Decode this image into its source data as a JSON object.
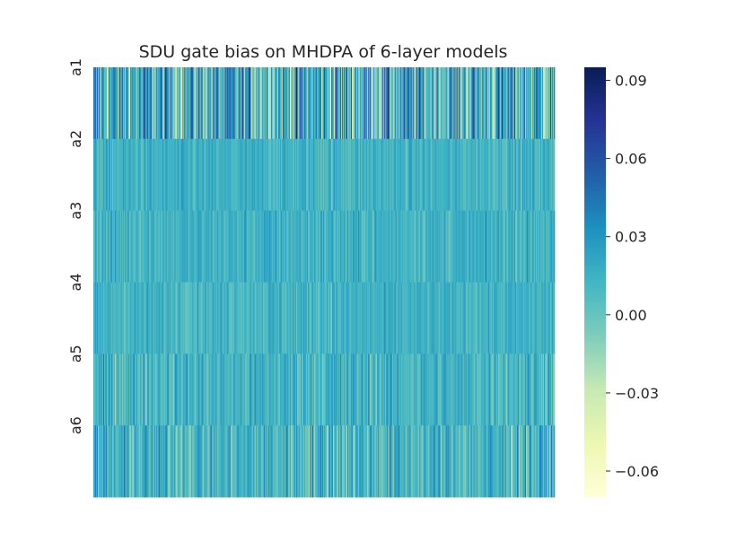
{
  "chart_data": {
    "type": "heatmap",
    "title": "SDU gate bias on MHDPA of 6-layer models",
    "xlabel": "",
    "ylabel": "",
    "row_labels": [
      "a1",
      "a2",
      "a3",
      "a4",
      "a5",
      "a6"
    ],
    "colormap": "YlGnBu",
    "vmin": -0.07,
    "vmax": 0.095,
    "colorbar_ticks": [
      0.09,
      0.06,
      0.03,
      0.0,
      -0.03,
      -0.06
    ],
    "colorbar_tick_labels": [
      "0.09",
      "0.06",
      "0.03",
      "0.00",
      "−0.03",
      "−0.06"
    ],
    "row_summary": [
      {
        "label": "a1",
        "typical_value": 0.015,
        "spread": 0.03
      },
      {
        "label": "a2",
        "typical_value": 0.013,
        "spread": 0.008
      },
      {
        "label": "a3",
        "typical_value": 0.014,
        "spread": 0.009
      },
      {
        "label": "a4",
        "typical_value": 0.013,
        "spread": 0.008
      },
      {
        "label": "a5",
        "typical_value": 0.013,
        "spread": 0.012
      },
      {
        "label": "a6",
        "typical_value": 0.012,
        "spread": 0.016
      }
    ],
    "columns_per_row": 512,
    "grid": false
  }
}
